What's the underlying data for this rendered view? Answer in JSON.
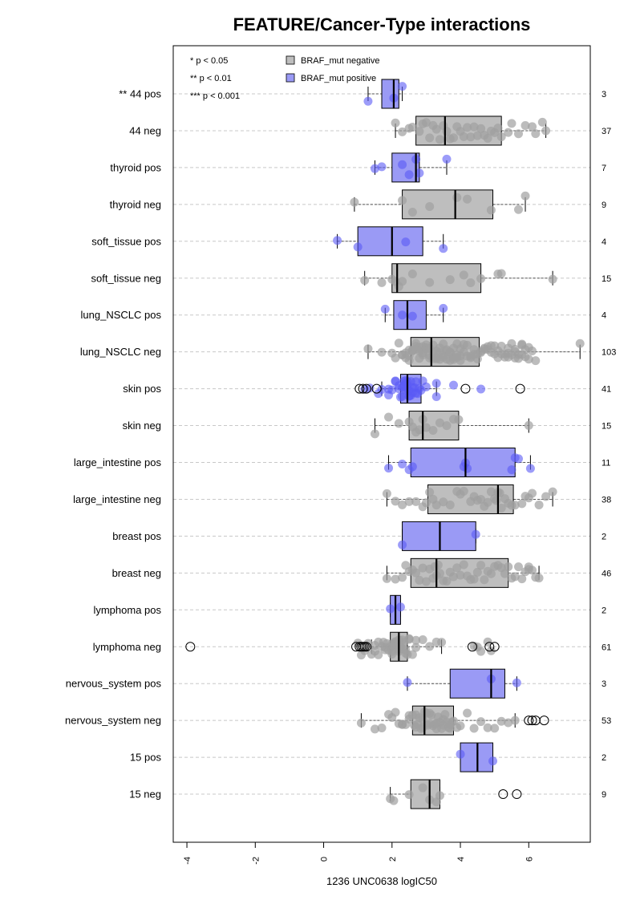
{
  "chart_data": {
    "type": "boxplot",
    "title": "FEATURE/Cancer-Type interactions",
    "xlabel": "1236 UNC0638 logIC50",
    "xlim": [
      -4.4,
      7.8
    ],
    "x_ticks": [
      "-4",
      "-2",
      "0",
      "2",
      "4",
      "6"
    ],
    "x_tick_values": [
      -4,
      -2,
      0,
      2,
      4,
      6
    ],
    "grid": "horizontal dashed",
    "significance_legend": [
      "* p < 0.05",
      "** p < 0.01",
      "*** p < 0.001"
    ],
    "series": [
      {
        "name": "BRAF_mut negative",
        "color": "#bebebe"
      },
      {
        "name": "BRAF_mut positive",
        "color": "#9a9af5"
      }
    ],
    "categories": [
      {
        "label": "** 44 pos",
        "count": "3",
        "group": "pos",
        "whisker": [
          1.3,
          2.3
        ],
        "box": [
          1.7,
          2.2
        ],
        "median": 2.05,
        "points": [
          1.3,
          2.05,
          2.3
        ],
        "outliers": []
      },
      {
        "label": "44 neg",
        "count": "37",
        "group": "neg",
        "whisker": [
          2.1,
          6.5
        ],
        "box": [
          2.7,
          5.2
        ],
        "median": 3.55,
        "points": [
          2.1,
          2.3,
          2.5,
          2.6,
          2.8,
          2.9,
          3.0,
          3.1,
          3.2,
          3.3,
          3.4,
          3.5,
          3.6,
          3.7,
          3.8,
          3.9,
          4.0,
          4.1,
          4.2,
          4.3,
          4.4,
          4.5,
          4.6,
          4.7,
          4.8,
          4.9,
          5.0,
          5.1,
          5.2,
          5.4,
          5.5,
          5.7,
          5.9,
          6.1,
          6.2,
          6.4,
          6.5
        ],
        "outliers": []
      },
      {
        "label": "thyroid pos",
        "count": "7",
        "group": "pos",
        "whisker": [
          1.5,
          3.6
        ],
        "box": [
          2.0,
          2.8
        ],
        "median": 2.7,
        "points": [
          1.5,
          1.7,
          2.3,
          2.5,
          2.7,
          2.8,
          3.6
        ],
        "outliers": []
      },
      {
        "label": "thyroid neg",
        "count": "9",
        "group": "neg",
        "whisker": [
          0.9,
          5.9
        ],
        "box": [
          2.3,
          4.95
        ],
        "median": 3.85,
        "points": [
          0.9,
          2.3,
          2.6,
          3.1,
          3.9,
          4.2,
          4.9,
          5.7,
          5.9
        ],
        "outliers": []
      },
      {
        "label": "soft_tissue pos",
        "count": "4",
        "group": "pos",
        "whisker": [
          0.4,
          3.5
        ],
        "box": [
          1.0,
          2.9
        ],
        "median": 2.0,
        "points": [
          0.4,
          1.0,
          2.4,
          3.5
        ],
        "outliers": []
      },
      {
        "label": "soft_tissue neg",
        "count": "15",
        "group": "neg",
        "whisker": [
          1.2,
          6.7
        ],
        "box": [
          2.0,
          4.6
        ],
        "median": 2.15,
        "points": [
          1.2,
          1.7,
          2.0,
          2.1,
          2.2,
          2.3,
          2.6,
          3.1,
          3.7,
          4.1,
          4.3,
          4.6,
          5.1,
          5.2,
          6.7
        ],
        "outliers": []
      },
      {
        "label": "lung_NSCLC pos",
        "count": "4",
        "group": "pos",
        "whisker": [
          1.8,
          3.5
        ],
        "box": [
          2.05,
          3.0
        ],
        "median": 2.45,
        "points": [
          1.8,
          2.3,
          2.6,
          3.5
        ],
        "outliers": []
      },
      {
        "label": "lung_NSCLC neg",
        "count": "103",
        "group": "neg",
        "whisker": [
          1.3,
          7.5
        ],
        "box": [
          2.55,
          4.55
        ],
        "median": 3.15,
        "points": [
          1.3,
          1.7,
          2.0,
          2.1,
          2.2,
          2.3,
          2.3,
          2.4,
          2.4,
          2.5,
          2.5,
          2.5,
          2.6,
          2.6,
          2.6,
          2.7,
          2.7,
          2.7,
          2.8,
          2.8,
          2.8,
          2.9,
          2.9,
          2.9,
          3.0,
          3.0,
          3.0,
          3.1,
          3.1,
          3.1,
          3.2,
          3.2,
          3.2,
          3.3,
          3.3,
          3.3,
          3.4,
          3.4,
          3.4,
          3.5,
          3.5,
          3.5,
          3.6,
          3.6,
          3.6,
          3.7,
          3.7,
          3.7,
          3.8,
          3.8,
          3.8,
          3.9,
          3.9,
          3.9,
          4.0,
          4.0,
          4.0,
          4.1,
          4.1,
          4.2,
          4.2,
          4.3,
          4.3,
          4.4,
          4.4,
          4.5,
          4.5,
          4.6,
          4.6,
          4.7,
          4.7,
          4.8,
          4.8,
          4.9,
          4.9,
          5.0,
          5.0,
          5.1,
          5.1,
          5.2,
          5.2,
          5.3,
          5.3,
          5.4,
          5.4,
          5.5,
          5.5,
          5.6,
          5.6,
          5.7,
          5.7,
          5.8,
          5.8,
          5.9,
          5.9,
          6.0,
          6.0,
          6.1,
          6.2,
          5.4,
          5.6,
          5.8,
          7.5
        ],
        "outliers": []
      },
      {
        "label": "skin pos",
        "count": "41",
        "group": "pos",
        "whisker": [
          1.7,
          3.3
        ],
        "box": [
          2.25,
          2.85
        ],
        "median": 2.45,
        "points": [
          1.7,
          1.9,
          2.0,
          2.1,
          2.2,
          2.25,
          2.3,
          2.3,
          2.35,
          2.35,
          2.4,
          2.4,
          2.4,
          2.45,
          2.45,
          2.45,
          2.5,
          2.5,
          2.5,
          2.55,
          2.55,
          2.6,
          2.6,
          2.65,
          2.7,
          2.7,
          2.75,
          2.8,
          2.85,
          2.9,
          3.0,
          3.3,
          1.2,
          1.35,
          1.6,
          1.9,
          2.1,
          2.2,
          3.3,
          3.8,
          4.6
        ],
        "outliers": [
          1.05,
          1.15,
          1.25,
          1.55,
          4.15,
          5.75
        ]
      },
      {
        "label": "skin neg",
        "count": "15",
        "group": "neg",
        "whisker": [
          1.5,
          6.0
        ],
        "box": [
          2.5,
          3.95
        ],
        "median": 2.9,
        "points": [
          1.5,
          1.9,
          2.2,
          2.5,
          2.6,
          2.7,
          2.8,
          2.9,
          3.0,
          3.2,
          3.4,
          3.6,
          3.8,
          3.95,
          6.0
        ],
        "outliers": []
      },
      {
        "label": "large_intestine pos",
        "count": "11",
        "group": "pos",
        "whisker": [
          1.9,
          6.05
        ],
        "box": [
          2.55,
          5.6
        ],
        "median": 4.15,
        "points": [
          1.9,
          2.3,
          2.5,
          2.6,
          4.1,
          4.15,
          4.2,
          5.5,
          5.6,
          5.7,
          6.05
        ],
        "outliers": []
      },
      {
        "label": "large_intestine neg",
        "count": "38",
        "group": "neg",
        "whisker": [
          1.85,
          6.7
        ],
        "box": [
          3.05,
          5.55
        ],
        "median": 5.1,
        "points": [
          1.85,
          2.1,
          2.3,
          2.5,
          2.7,
          2.9,
          3.0,
          3.1,
          3.2,
          3.3,
          3.5,
          3.7,
          3.9,
          4.0,
          4.1,
          4.3,
          4.4,
          4.5,
          4.6,
          4.7,
          4.8,
          4.9,
          5.0,
          5.05,
          5.1,
          5.15,
          5.2,
          5.3,
          5.4,
          5.5,
          5.6,
          5.8,
          5.9,
          6.0,
          6.1,
          6.3,
          6.5,
          6.7
        ],
        "outliers": []
      },
      {
        "label": "breast pos",
        "count": "2",
        "group": "pos",
        "whisker": [
          2.3,
          4.45
        ],
        "box": [
          2.3,
          4.45
        ],
        "median": 3.4,
        "points": [
          2.3,
          4.45
        ],
        "outliers": []
      },
      {
        "label": "breast neg",
        "count": "46",
        "group": "neg",
        "whisker": [
          1.85,
          6.3
        ],
        "box": [
          2.55,
          5.4
        ],
        "median": 3.3,
        "points": [
          1.85,
          2.1,
          2.3,
          2.4,
          2.5,
          2.6,
          2.7,
          2.8,
          2.9,
          3.0,
          3.1,
          3.2,
          3.25,
          3.3,
          3.35,
          3.4,
          3.5,
          3.6,
          3.7,
          3.8,
          3.9,
          4.0,
          4.1,
          4.2,
          4.3,
          4.4,
          4.5,
          4.6,
          4.7,
          4.8,
          4.9,
          5.0,
          5.1,
          5.2,
          5.3,
          5.4,
          5.5,
          5.6,
          5.7,
          5.8,
          5.9,
          6.0,
          6.1,
          6.2,
          6.3,
          6.0
        ],
        "outliers": []
      },
      {
        "label": "lymphoma pos",
        "count": "2",
        "group": "pos",
        "whisker": [
          1.95,
          2.25
        ],
        "box": [
          1.95,
          2.25
        ],
        "median": 2.1,
        "points": [
          1.95,
          2.25
        ],
        "outliers": []
      },
      {
        "label": "lymphoma neg",
        "count": "61",
        "group": "neg",
        "whisker": [
          1.4,
          3.45
        ],
        "box": [
          1.95,
          2.45
        ],
        "median": 2.2,
        "points": [
          1.4,
          1.5,
          1.6,
          1.7,
          1.75,
          1.8,
          1.85,
          1.9,
          1.95,
          2.0,
          2.0,
          2.05,
          2.1,
          2.1,
          2.15,
          2.2,
          2.2,
          2.25,
          2.3,
          2.3,
          2.35,
          2.4,
          2.45,
          2.5,
          2.6,
          2.7,
          2.9,
          3.1,
          3.3,
          3.45,
          1.0,
          1.1,
          1.2,
          1.3,
          1.5,
          1.6,
          1.8,
          2.0,
          2.2,
          2.4,
          2.5,
          2.7,
          4.4,
          4.5,
          4.6,
          4.8,
          4.9
        ],
        "outliers": [
          -3.9,
          0.95,
          1.05,
          1.1,
          1.15,
          1.2,
          1.25,
          4.35,
          4.85,
          5.0
        ]
      },
      {
        "label": "nervous_system pos",
        "count": "3",
        "group": "pos",
        "whisker": [
          2.45,
          5.65
        ],
        "box": [
          3.7,
          5.3
        ],
        "median": 4.9,
        "points": [
          2.45,
          4.9,
          5.65
        ],
        "outliers": []
      },
      {
        "label": "nervous_system neg",
        "count": "53",
        "group": "neg",
        "whisker": [
          1.1,
          5.6
        ],
        "box": [
          2.6,
          3.8
        ],
        "median": 2.95,
        "points": [
          1.1,
          1.5,
          1.7,
          1.9,
          2.0,
          2.1,
          2.2,
          2.3,
          2.4,
          2.5,
          2.6,
          2.65,
          2.7,
          2.75,
          2.8,
          2.85,
          2.9,
          2.95,
          3.0,
          3.05,
          3.1,
          3.15,
          3.2,
          3.25,
          3.3,
          3.35,
          3.4,
          3.45,
          3.5,
          3.55,
          3.6,
          3.65,
          3.7,
          3.75,
          3.8,
          3.9,
          4.0,
          4.2,
          4.4,
          4.6,
          4.8,
          5.0,
          5.2,
          5.4,
          5.6,
          2.3,
          2.5,
          2.7,
          2.9,
          3.1,
          3.3,
          3.5,
          3.7
        ],
        "outliers": [
          6.0,
          6.1,
          6.2,
          6.45
        ]
      },
      {
        "label": "15 pos",
        "count": "2",
        "group": "pos",
        "whisker": [
          4.0,
          4.95
        ],
        "box": [
          4.0,
          4.95
        ],
        "median": 4.5,
        "points": [
          4.0,
          4.95
        ],
        "outliers": []
      },
      {
        "label": "15 neg",
        "count": "9",
        "group": "neg",
        "whisker": [
          1.95,
          3.4
        ],
        "box": [
          2.55,
          3.4
        ],
        "median": 3.1,
        "points": [
          1.95,
          2.05,
          2.5,
          2.9,
          3.1,
          3.3,
          3.4
        ],
        "outliers": [
          5.25,
          5.65
        ]
      }
    ]
  }
}
